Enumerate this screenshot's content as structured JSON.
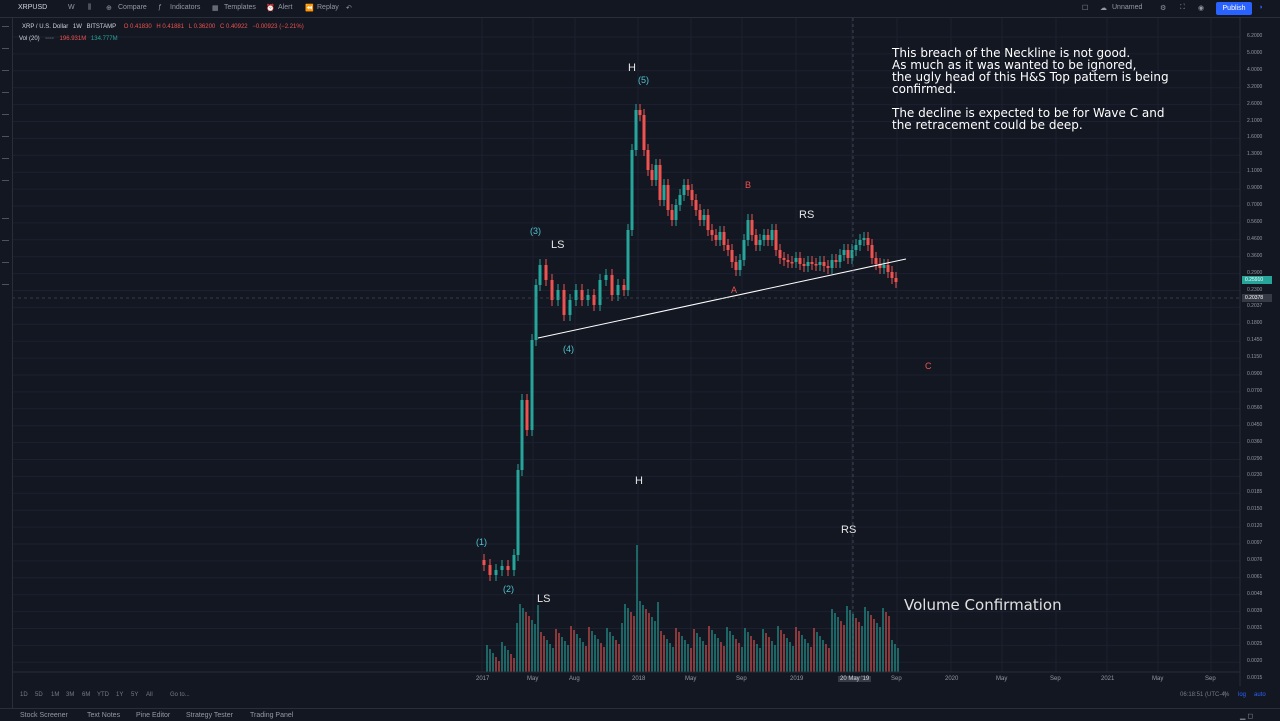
{
  "toolbar": {
    "symbol": "XRPUSD",
    "interval": "W",
    "compare": "Compare",
    "indicators": "Indicators",
    "templates": "Templates",
    "alert": "Alert",
    "replay": "Replay",
    "layout_name": "Unnamed",
    "publish": "Publish"
  },
  "legend": {
    "title": "XRP / U.S. Dollar",
    "interval": "1W",
    "exchange": "BITSTAMP",
    "open": "O 0.41830",
    "high": "H 0.41881",
    "low": "L 0.36200",
    "close": "C 0.40922",
    "change": "−0.00923 (−2.21%)",
    "volume_label": "Vol (20)",
    "volume_value": "196.931M",
    "volume_ma": "134.777M"
  },
  "annotation_text": {
    "line1": "This breach of the Neckline is not good.",
    "line2": "As much as it was wanted to be ignored,",
    "line3": "the ugly head of this H&S Top pattern is being",
    "line4": "confirmed.",
    "line5": "The decline is expected to be for Wave C and",
    "line6": "the retracement could be deep."
  },
  "pattern_labels": {
    "h_price": "H",
    "ls_price": "LS",
    "rs_price": "RS",
    "h_volume": "H",
    "ls_volume": "LS",
    "rs_volume": "RS",
    "volume_confirmation": "Volume Confirmation"
  },
  "wave_labels": {
    "w1": "(1)",
    "w2": "(2)",
    "w3": "(3)",
    "w4": "(4)",
    "w5": "(5)",
    "a": "A",
    "b": "B",
    "c": "C"
  },
  "x_axis": [
    "2017",
    "May",
    "Aug",
    "2018",
    "May",
    "Sep",
    "2019",
    "20 May '19",
    "Sep",
    "2020",
    "May",
    "Sep",
    "2021",
    "May",
    "Sep"
  ],
  "y_axis": [
    "6.2000",
    "5.0000",
    "4.0000",
    "3.2000",
    "2.6000",
    "2.1000",
    "1.6000",
    "1.3000",
    "1.1000",
    "0.9000",
    "0.7000",
    "0.5600",
    "0.4600",
    "0.3600",
    "0.2900",
    "0.2300",
    "0.2037",
    "0.1800",
    "0.1450",
    "0.1150",
    "0.0900",
    "0.0700",
    "0.0560",
    "0.0450",
    "0.0360",
    "0.0290",
    "0.0230",
    "0.0185",
    "0.0150",
    "0.0120",
    "0.0097",
    "0.0076",
    "0.0061",
    "0.0048",
    "0.0039",
    "0.0031",
    "0.0025",
    "0.0020",
    "0.0015"
  ],
  "current_price": "0.25910",
  "crosshair_price": "0.20378",
  "timeframes": [
    "1D",
    "5D",
    "1M",
    "3M",
    "6M",
    "YTD",
    "1Y",
    "5Y",
    "All"
  ],
  "goto": "Go to...",
  "clock": "06:18:51 (UTC-4)",
  "scale_buttons": [
    "%",
    "log",
    "auto"
  ],
  "bottom_tabs": [
    "Stock Screener",
    "Text Notes",
    "Pine Editor",
    "Strategy Tester",
    "Trading Panel"
  ],
  "colors": {
    "background": "#131722",
    "up": "#26a69a",
    "down": "#ef5350",
    "accent": "#2962ff"
  }
}
